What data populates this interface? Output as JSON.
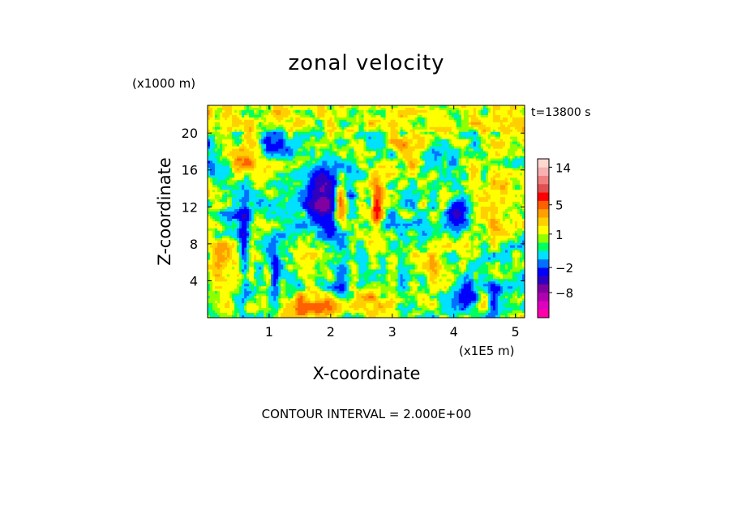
{
  "chart_data": {
    "type": "heatmap",
    "title": "zonal velocity",
    "time_label": "t=13800 s",
    "xlabel": "X-coordinate",
    "ylabel": "Z-coordinate",
    "x_scale_label": "(x1E5 m)",
    "y_scale_label": "(x1000 m)",
    "xlim": [
      0,
      5.15
    ],
    "ylim": [
      0,
      23
    ],
    "x_ticks": [
      1,
      2,
      3,
      4,
      5
    ],
    "y_ticks": [
      4,
      8,
      12,
      16,
      20
    ],
    "footer": "CONTOUR INTERVAL = 2.000E+00",
    "contour_interval": 2.0,
    "colorbar": {
      "ticks": [
        "14",
        "5",
        "1",
        "−2",
        "−8"
      ],
      "tick_values": [
        14,
        5,
        1,
        -2,
        -8
      ],
      "levels": [
        {
          "min": -14,
          "max": -12,
          "color": "#ff00aa"
        },
        {
          "min": -12,
          "max": -10,
          "color": "#e000c0"
        },
        {
          "min": -10,
          "max": -8,
          "color": "#b000b0"
        },
        {
          "min": -8,
          "max": -6,
          "color": "#8000a0"
        },
        {
          "min": -6,
          "max": -4,
          "color": "#3000c0"
        },
        {
          "min": -4,
          "max": -2,
          "color": "#0000ff"
        },
        {
          "min": -2,
          "max": -1,
          "color": "#0070ff"
        },
        {
          "min": -1,
          "max": 0,
          "color": "#00e0ff"
        },
        {
          "min": 0,
          "max": 0.5,
          "color": "#00ff60"
        },
        {
          "min": 0.5,
          "max": 1,
          "color": "#90ff00"
        },
        {
          "min": 1,
          "max": 2,
          "color": "#ffff00"
        },
        {
          "min": 2,
          "max": 3,
          "color": "#ffd000"
        },
        {
          "min": 3,
          "max": 4,
          "color": "#ffa000"
        },
        {
          "min": 4,
          "max": 6,
          "color": "#ff6000"
        },
        {
          "min": 6,
          "max": 8,
          "color": "#ff0000"
        },
        {
          "min": 8,
          "max": 10,
          "color": "#e05050"
        },
        {
          "min": 10,
          "max": 12,
          "color": "#f08080"
        },
        {
          "min": 12,
          "max": 14,
          "color": "#f8b0b0"
        },
        {
          "min": 14,
          "max": 16,
          "color": "#ffd8d0"
        }
      ]
    },
    "field": {
      "description": "zonal velocity field u(x,z), m/s, sampled on a grid",
      "background": [
        {
          "z_min": 20,
          "z_max": 23,
          "value": 1.5
        },
        {
          "z_min": 0,
          "z_max": 20,
          "value": 0.7
        }
      ],
      "features": [
        {
          "x": 2.0,
          "z": 12.5,
          "sx": 0.35,
          "sz": 3.5,
          "amp": -5
        },
        {
          "x": 1.85,
          "z": 13.5,
          "sx": 0.25,
          "sz": 2.5,
          "amp": -4
        },
        {
          "x": 4.05,
          "z": 11.5,
          "sx": 0.15,
          "sz": 2.0,
          "amp": -4
        },
        {
          "x": 0.6,
          "z": 8.0,
          "sx": 0.08,
          "sz": 5.0,
          "amp": -4
        },
        {
          "x": 1.1,
          "z": 4.0,
          "sx": 0.08,
          "sz": 4.0,
          "amp": -3.5
        },
        {
          "x": 2.2,
          "z": 4.0,
          "sx": 0.15,
          "sz": 3.0,
          "amp": -3
        },
        {
          "x": 4.2,
          "z": 3.0,
          "sx": 0.15,
          "sz": 2.0,
          "amp": -3.5
        },
        {
          "x": 4.65,
          "z": 2.0,
          "sx": 0.1,
          "sz": 2.0,
          "amp": -3
        },
        {
          "x": 1.15,
          "z": 18.5,
          "sx": 0.25,
          "sz": 1.5,
          "amp": -2.5
        },
        {
          "x": 0.95,
          "z": 19.0,
          "sx": 0.1,
          "sz": 0.8,
          "amp": -3
        },
        {
          "x": 2.15,
          "z": 12.5,
          "sx": 0.12,
          "sz": 2.5,
          "amp": 8
        },
        {
          "x": 2.75,
          "z": 12.0,
          "sx": 0.08,
          "sz": 2.0,
          "amp": 7
        },
        {
          "x": 1.7,
          "z": 1.0,
          "sx": 0.5,
          "sz": 1.5,
          "amp": 3.5
        },
        {
          "x": 3.2,
          "z": 18.0,
          "sx": 0.3,
          "sz": 2.0,
          "amp": 3
        },
        {
          "x": 0.7,
          "z": 17.0,
          "sx": 0.3,
          "sz": 2.5,
          "amp": 2.5
        },
        {
          "x": 4.6,
          "z": 12.0,
          "sx": 0.3,
          "sz": 3.0,
          "amp": 2.5
        },
        {
          "x": 2.6,
          "z": 2.0,
          "sx": 0.3,
          "sz": 1.5,
          "amp": 2.5
        },
        {
          "x": 0.2,
          "z": 7.0,
          "sx": 0.2,
          "sz": 2.0,
          "amp": 2.5
        },
        {
          "x": 3.6,
          "z": 6.0,
          "sx": 0.25,
          "sz": 2.0,
          "amp": 2
        },
        {
          "x": 2.9,
          "z": 18.0,
          "sx": 0.4,
          "sz": 1.5,
          "amp": -1.5
        },
        {
          "x": 3.8,
          "z": 17.0,
          "sx": 0.3,
          "sz": 1.5,
          "amp": -1.3
        },
        {
          "x": 0.5,
          "z": 11.0,
          "sx": 0.3,
          "sz": 2.5,
          "amp": -1.2
        },
        {
          "x": 1.4,
          "z": 9.0,
          "sx": 0.3,
          "sz": 2.5,
          "amp": -1.2
        },
        {
          "x": 3.3,
          "z": 10.0,
          "sx": 0.3,
          "sz": 3.0,
          "amp": -1.0
        },
        {
          "x": 4.9,
          "z": 6.0,
          "sx": 0.25,
          "sz": 2.5,
          "amp": -1.2
        },
        {
          "x": 0.05,
          "z": 18.0,
          "sx": 0.1,
          "sz": 2.0,
          "amp": -1.5
        },
        {
          "x": 3.0,
          "z": 4.0,
          "sx": 0.4,
          "sz": 2.0,
          "amp": -1.1
        }
      ]
    }
  }
}
